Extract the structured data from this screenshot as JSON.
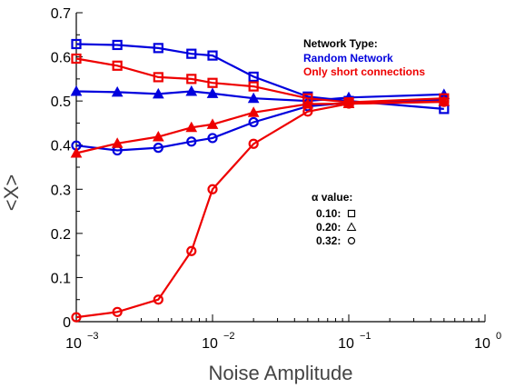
{
  "chart_data": {
    "type": "line",
    "xlabel": "Noise Amplitude",
    "ylabel": "<X>",
    "xscale": "log",
    "xlim": [
      0.001,
      1
    ],
    "ylim": [
      0,
      0.7
    ],
    "x_ticks": [
      {
        "value": 0.001,
        "base": "10",
        "exp": "−3"
      },
      {
        "value": 0.01,
        "base": "10",
        "exp": "−2"
      },
      {
        "value": 0.1,
        "base": "10",
        "exp": "−1"
      },
      {
        "value": 1,
        "base": "10",
        "exp": "0"
      }
    ],
    "y_ticks": [
      "0",
      "0.1",
      "0.2",
      "0.3",
      "0.4",
      "0.5",
      "0.6",
      "0.7"
    ],
    "x": [
      0.001,
      0.002,
      0.004,
      0.007,
      0.01,
      0.02,
      0.05,
      0.1,
      0.5
    ],
    "series": [
      {
        "network": "Random Network",
        "alpha": "0.10",
        "marker": "square",
        "color": "#0000dd",
        "values": [
          0.629,
          0.627,
          0.62,
          0.607,
          0.603,
          0.555,
          0.51,
          0.5,
          0.482
        ]
      },
      {
        "network": "Random Network",
        "alpha": "0.20",
        "marker": "triangle",
        "color": "#0000dd",
        "values": [
          0.522,
          0.52,
          0.516,
          0.522,
          0.517,
          0.506,
          0.5,
          0.508,
          0.515
        ]
      },
      {
        "network": "Random Network",
        "alpha": "0.32",
        "marker": "circle",
        "color": "#0000dd",
        "values": [
          0.399,
          0.388,
          0.394,
          0.408,
          0.416,
          0.452,
          0.488,
          0.496,
          0.503
        ]
      },
      {
        "network": "Only short connections",
        "alpha": "0.10",
        "marker": "square",
        "color": "#ee0000",
        "values": [
          0.596,
          0.58,
          0.554,
          0.55,
          0.541,
          0.533,
          0.506,
          0.497,
          0.506
        ]
      },
      {
        "network": "Only short connections",
        "alpha": "0.20",
        "marker": "triangle",
        "color": "#ee0000",
        "values": [
          0.382,
          0.404,
          0.419,
          0.44,
          0.447,
          0.474,
          0.493,
          0.494,
          0.499
        ]
      },
      {
        "network": "Only short connections",
        "alpha": "0.32",
        "marker": "circle",
        "color": "#ee0000",
        "values": [
          0.01,
          0.022,
          0.05,
          0.16,
          0.3,
          0.403,
          0.476,
          0.494,
          0.498
        ]
      }
    ],
    "legend": {
      "network_title": "Network Type:",
      "network_entries": [
        {
          "label": "Random Network",
          "color": "#0000dd"
        },
        {
          "label": "Only short connections",
          "color": "#ee0000"
        }
      ],
      "alpha_title": "α value:",
      "alpha_entries": [
        {
          "label": "0.10:",
          "marker": "square"
        },
        {
          "label": "0.20:",
          "marker": "triangle"
        },
        {
          "label": "0.32:",
          "marker": "circle"
        }
      ]
    }
  }
}
